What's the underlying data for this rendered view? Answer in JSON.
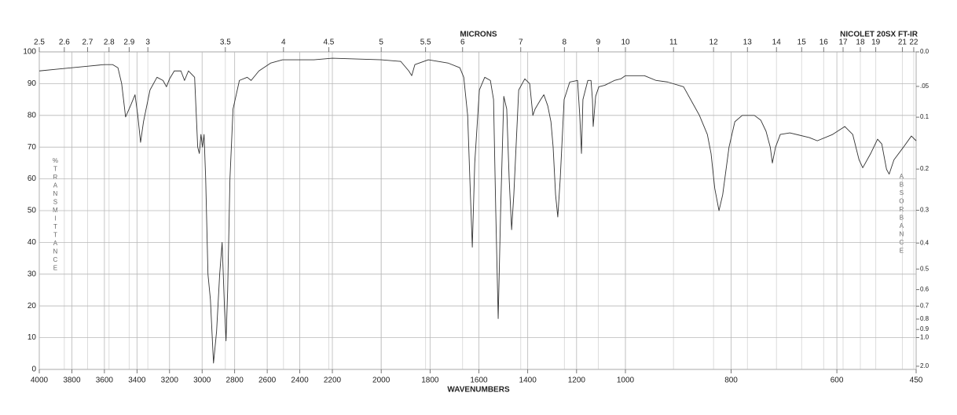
{
  "chart_data": {
    "type": "line",
    "title": "NICOLET 20SX FT-IR",
    "x_label": "WAVENUMBERS",
    "top_axis_label": "MICRONS",
    "y_label": "%TRANSMITTANCE",
    "y2_label": "ABSORBANCE",
    "color": "#333333",
    "grid": true,
    "xlim": [
      4000,
      450
    ],
    "xticks": [
      4000,
      3800,
      3600,
      3400,
      3200,
      3000,
      2800,
      2600,
      2400,
      2200,
      2000,
      1800,
      1600,
      1400,
      1200,
      1000,
      800,
      600,
      450
    ],
    "ylim": [
      0,
      100
    ],
    "yticks": [
      0,
      10,
      20,
      30,
      40,
      50,
      60,
      70,
      80,
      90,
      100
    ],
    "micron_ticks": [
      2.5,
      2.6,
      2.7,
      2.8,
      2.9,
      3,
      3.5,
      4,
      4.5,
      5,
      5.5,
      6,
      7,
      8,
      9,
      10,
      11,
      12,
      13,
      14,
      15,
      16,
      17,
      18,
      19,
      21,
      22
    ],
    "absorbance_ticks": [
      {
        "value": 0,
        "label": "0.0"
      },
      {
        "value": 0.05,
        "label": ".05"
      },
      0.1,
      0.2,
      0.3,
      0.4,
      0.5,
      0.6,
      0.7,
      0.8,
      0.9,
      {
        "value": 1,
        "label": "1.0"
      },
      {
        "value": 2,
        "label": "2.0"
      }
    ],
    "x": [
      4000,
      3900,
      3800,
      3700,
      3600,
      3550,
      3517,
      3494,
      3470,
      3440,
      3412,
      3395,
      3378,
      3360,
      3320,
      3277,
      3240,
      3219,
      3200,
      3171,
      3130,
      3108,
      3084,
      3046,
      3027,
      3017,
      3007,
      2998,
      2988,
      2978,
      2964,
      2949,
      2930,
      2911,
      2892,
      2877,
      2863,
      2853,
      2843,
      2829,
      2810,
      2771,
      2723,
      2699,
      2651,
      2578,
      2506,
      2400,
      2313,
      2200,
      2000,
      1920,
      1887,
      1875,
      1862,
      1807,
      1727,
      1678,
      1662,
      1646,
      1637,
      1627,
      1617,
      1598,
      1576,
      1553,
      1540,
      1531,
      1521,
      1511,
      1498,
      1486,
      1476,
      1466,
      1457,
      1437,
      1412,
      1392,
      1379,
      1370,
      1347,
      1334,
      1318,
      1305,
      1296,
      1286,
      1277,
      1267,
      1251,
      1228,
      1196,
      1187,
      1180,
      1174,
      1154,
      1141,
      1135,
      1132,
      1122,
      1109,
      1084,
      1045,
      1019,
      1000,
      964,
      942,
      920,
      890,
      860,
      845,
      838,
      831,
      823,
      816,
      804,
      793,
      779,
      756,
      744,
      734,
      726,
      722,
      716,
      707,
      689,
      652,
      637,
      608,
      585,
      570,
      558,
      551,
      536,
      523,
      515,
      506,
      501,
      492,
      474,
      459,
      450
    ],
    "values": [
      94,
      94.5,
      95,
      95.5,
      96,
      96,
      95,
      90,
      79.5,
      83,
      86.5,
      80,
      71.5,
      78,
      88,
      92,
      91,
      89,
      91.5,
      94,
      94,
      91,
      94,
      92,
      70,
      68,
      74,
      70,
      74,
      60,
      30,
      22,
      2,
      12,
      30,
      40,
      20,
      9,
      25,
      60,
      82,
      91,
      92,
      91,
      94,
      96.5,
      97.5,
      97.5,
      97.5,
      98,
      97.5,
      97,
      94,
      92.5,
      96,
      97.5,
      96.5,
      95,
      92,
      80,
      60,
      38.5,
      65,
      88,
      92,
      91,
      85,
      50,
      16,
      50,
      86,
      82,
      60,
      44,
      55,
      88,
      91.5,
      90,
      80,
      82,
      85,
      86.5,
      83,
      78,
      70,
      55,
      48,
      60,
      85,
      90.5,
      91,
      80,
      68,
      85,
      91,
      91,
      85,
      76.5,
      86,
      89,
      89.5,
      91,
      91.5,
      92.5,
      92.5,
      91,
      90.5,
      89,
      80,
      74,
      68,
      57,
      50,
      55,
      70,
      78,
      80,
      80,
      78.5,
      75,
      70,
      65,
      70,
      74,
      74.5,
      73,
      72,
      74,
      76.5,
      74,
      66,
      63.5,
      68,
      72.5,
      71,
      63,
      61.5,
      66,
      70,
      73.5,
      72
    ]
  }
}
